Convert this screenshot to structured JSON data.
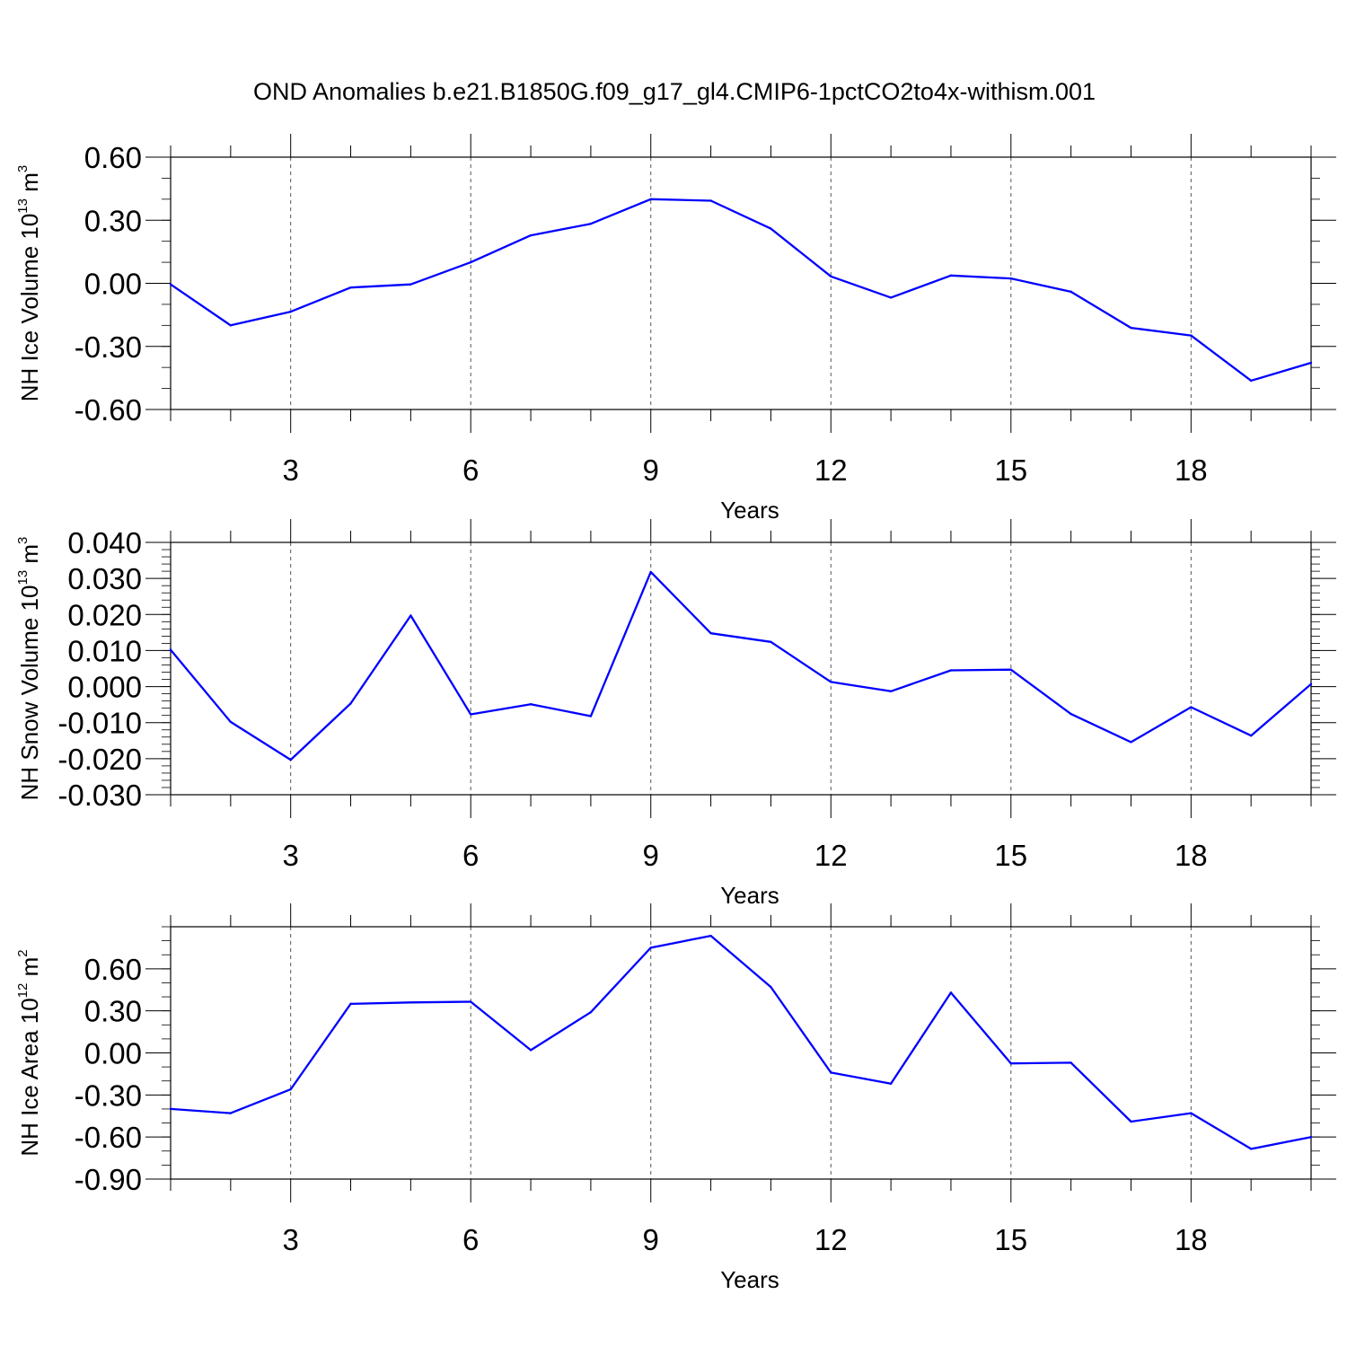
{
  "title": "OND Anomalies b.e21.B1850G.f09_g17_gl4.CMIP6-1pctCO2to4x-withism.001",
  "colors": {
    "line": "#0000ff",
    "axis": "#000000",
    "grid": "#555555"
  },
  "chart_data": [
    {
      "type": "line",
      "xlabel": "Years",
      "ylabel": {
        "text": "NH Ice Volume 10",
        "sup1": "13",
        "mid": " m",
        "sup2": "3"
      },
      "xlim": [
        1,
        20
      ],
      "ylim": [
        -0.6,
        0.6
      ],
      "xticks": [
        3,
        6,
        9,
        12,
        15,
        18
      ],
      "xtick_labels": [
        "3",
        "6",
        "9",
        "12",
        "15",
        "18"
      ],
      "yticks": [
        -0.6,
        -0.3,
        0.0,
        0.3,
        0.6
      ],
      "ytick_labels": [
        "-0.60",
        "-0.30",
        "0.00",
        "0.30",
        "0.60"
      ],
      "yminor_step": 0.1,
      "grid_x": true,
      "series": [
        {
          "name": "NH Ice Volume",
          "x": [
            1,
            2,
            3,
            4,
            5,
            6,
            7,
            8,
            9,
            10,
            11,
            12,
            13,
            14,
            15,
            16,
            17,
            18,
            19,
            20
          ],
          "values": [
            -0.005,
            -0.2,
            -0.135,
            -0.02,
            -0.005,
            0.1,
            0.228,
            0.283,
            0.4,
            0.393,
            0.26,
            0.033,
            -0.068,
            0.037,
            0.023,
            -0.04,
            -0.212,
            -0.248,
            -0.463,
            -0.378
          ]
        }
      ]
    },
    {
      "type": "line",
      "xlabel": "Years",
      "ylabel": {
        "text": "NH Snow Volume 10",
        "sup1": "13",
        "mid": " m",
        "sup2": "3"
      },
      "xlim": [
        1,
        20
      ],
      "ylim": [
        -0.03,
        0.04
      ],
      "xticks": [
        3,
        6,
        9,
        12,
        15,
        18
      ],
      "xtick_labels": [
        "3",
        "6",
        "9",
        "12",
        "15",
        "18"
      ],
      "yticks": [
        -0.03,
        -0.02,
        -0.01,
        0.0,
        0.01,
        0.02,
        0.03,
        0.04
      ],
      "ytick_labels": [
        "-0.030",
        "-0.020",
        "-0.010",
        "0.000",
        "0.010",
        "0.020",
        "0.030",
        "0.040"
      ],
      "yminor_step": 0.002,
      "grid_x": true,
      "series": [
        {
          "name": "NH Snow Volume",
          "x": [
            1,
            2,
            3,
            4,
            5,
            6,
            7,
            8,
            9,
            10,
            11,
            12,
            13,
            14,
            15,
            16,
            17,
            18,
            19,
            20
          ],
          "values": [
            0.0102,
            -0.0098,
            -0.0203,
            -0.0047,
            0.0197,
            -0.0077,
            -0.0049,
            -0.0082,
            0.0318,
            0.0148,
            0.0124,
            0.0013,
            -0.0013,
            0.0045,
            0.0047,
            -0.0076,
            -0.0154,
            -0.0057,
            -0.0136,
            0.0007
          ]
        }
      ]
    },
    {
      "type": "line",
      "xlabel": "Years",
      "ylabel": {
        "text": "NH Ice Area 10",
        "sup1": "12",
        "mid": " m",
        "sup2": "2"
      },
      "xlim": [
        1,
        20
      ],
      "ylim": [
        -0.9,
        0.9
      ],
      "xticks": [
        3,
        6,
        9,
        12,
        15,
        18
      ],
      "xtick_labels": [
        "3",
        "6",
        "9",
        "12",
        "15",
        "18"
      ],
      "yticks": [
        -0.9,
        -0.6,
        -0.3,
        0.0,
        0.3,
        0.6
      ],
      "ytick_labels": [
        "-0.90",
        "-0.60",
        "-0.30",
        "0.00",
        "0.30",
        "0.60"
      ],
      "yminor_step": 0.1,
      "grid_x": true,
      "series": [
        {
          "name": "NH Ice Area",
          "x": [
            1,
            2,
            3,
            4,
            5,
            6,
            7,
            8,
            9,
            10,
            11,
            12,
            13,
            14,
            15,
            16,
            17,
            18,
            19,
            20
          ],
          "values": [
            -0.4,
            -0.43,
            -0.26,
            0.35,
            0.36,
            0.365,
            0.02,
            0.29,
            0.75,
            0.835,
            0.47,
            -0.14,
            -0.22,
            0.43,
            -0.075,
            -0.07,
            -0.49,
            -0.43,
            -0.685,
            -0.6
          ]
        }
      ]
    }
  ]
}
